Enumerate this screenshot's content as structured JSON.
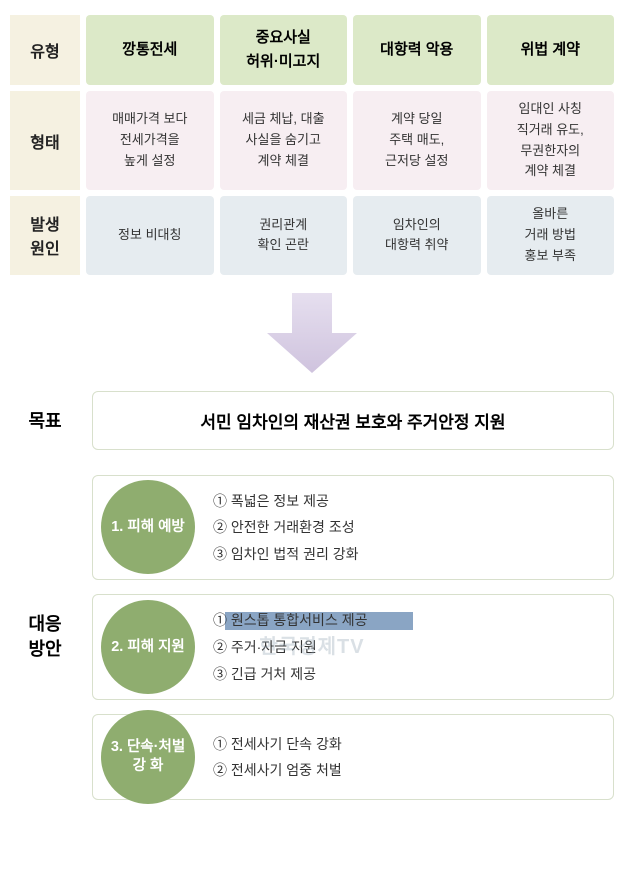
{
  "colors": {
    "header_bg": "#dce9c8",
    "pink_bg": "#f7eef2",
    "blue_bg": "#e6ecf0",
    "label_bg": "#f5f1e1",
    "circle_bg": "#8fad6f",
    "border": "#d8e0cc",
    "text": "#333333",
    "white": "#ffffff"
  },
  "table": {
    "row_labels": [
      "유형",
      "형태",
      "발생\n원인"
    ],
    "header": [
      "깡통전세",
      "중요사실\n허위·미고지",
      "대항력 악용",
      "위법 계약"
    ],
    "forms": [
      "매매가격 보다\n전세가격을\n높게 설정",
      "세금 체납, 대출\n사실을 숨기고\n계약 체결",
      "계약 당일\n주택 매도,\n근저당 설정",
      "임대인 사칭\n직거래 유도,\n무권한자의\n계약 체결"
    ],
    "causes": [
      "정보 비대칭",
      "권리관계\n확인 곤란",
      "임차인의\n대항력 취약",
      "올바른\n거래 방법\n홍보 부족"
    ]
  },
  "arrow": {
    "width": 110,
    "height": 80,
    "fill_top": "#e6dfef",
    "fill_bottom": "#cfc3de",
    "stroke": "#bfb3d3"
  },
  "goal": {
    "label": "목표",
    "text": "서민 임차인의 재산권 보호와 주거안정 지원"
  },
  "response": {
    "label": "대응\n방안",
    "items": [
      {
        "circle": "1. 피해 예방",
        "bullets": [
          "① 폭넓은 정보 제공",
          "② 안전한 거래환경 조성",
          "③ 임차인 법적 권리 강화"
        ]
      },
      {
        "circle": "2. 피해 지원",
        "bullets": [
          "① 원스톱 통합서비스 제공",
          "② 주거·자금 지원",
          "③ 긴급 거처 제공"
        ],
        "highlight_index": 0
      },
      {
        "circle": "3. 단속·처벌\n강 화",
        "bullets": [
          "① 전세사기 단속 강화",
          "② 전세사기 엄중 처벌"
        ]
      }
    ]
  },
  "watermark": "한국경제TV"
}
